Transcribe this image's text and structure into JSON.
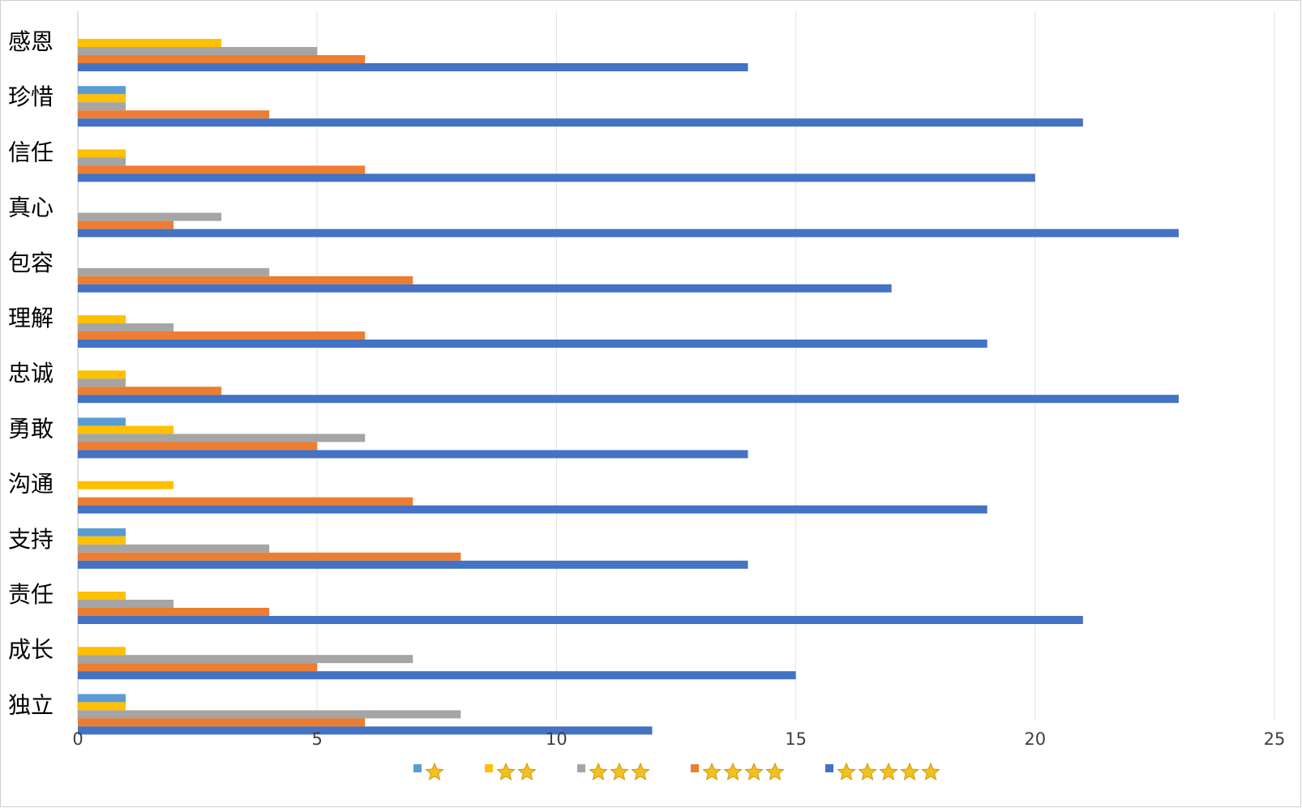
{
  "chart_data": {
    "type": "bar",
    "orientation": "horizontal",
    "categories": [
      "感恩",
      "珍惜",
      "信任",
      "真心",
      "包容",
      "理解",
      "忠诚",
      "勇敢",
      "沟通",
      "支持",
      "责任",
      "成长",
      "独立"
    ],
    "series": [
      {
        "stars": 1,
        "color": "#5b9bd5",
        "values": [
          0,
          1,
          0,
          0,
          0,
          0,
          0,
          1,
          0,
          1,
          0,
          0,
          1
        ]
      },
      {
        "stars": 2,
        "color": "#ffc000",
        "values": [
          3,
          1,
          1,
          0,
          0,
          1,
          1,
          2,
          2,
          1,
          1,
          1,
          1
        ]
      },
      {
        "stars": 3,
        "color": "#a5a5a5",
        "values": [
          5,
          1,
          1,
          3,
          4,
          2,
          1,
          6,
          0,
          4,
          2,
          7,
          8
        ]
      },
      {
        "stars": 4,
        "color": "#ed7d31",
        "values": [
          6,
          4,
          6,
          2,
          7,
          6,
          3,
          5,
          7,
          8,
          4,
          5,
          6
        ]
      },
      {
        "stars": 5,
        "color": "#4472c4",
        "values": [
          14,
          21,
          20,
          23,
          17,
          19,
          23,
          14,
          19,
          14,
          21,
          15,
          12
        ]
      }
    ],
    "xlim": [
      0,
      25
    ],
    "xticks": [
      "0",
      "5",
      "10",
      "15",
      "20",
      "25"
    ],
    "grid": true,
    "legend_position": "bottom",
    "legend_icon": "star-icon"
  }
}
